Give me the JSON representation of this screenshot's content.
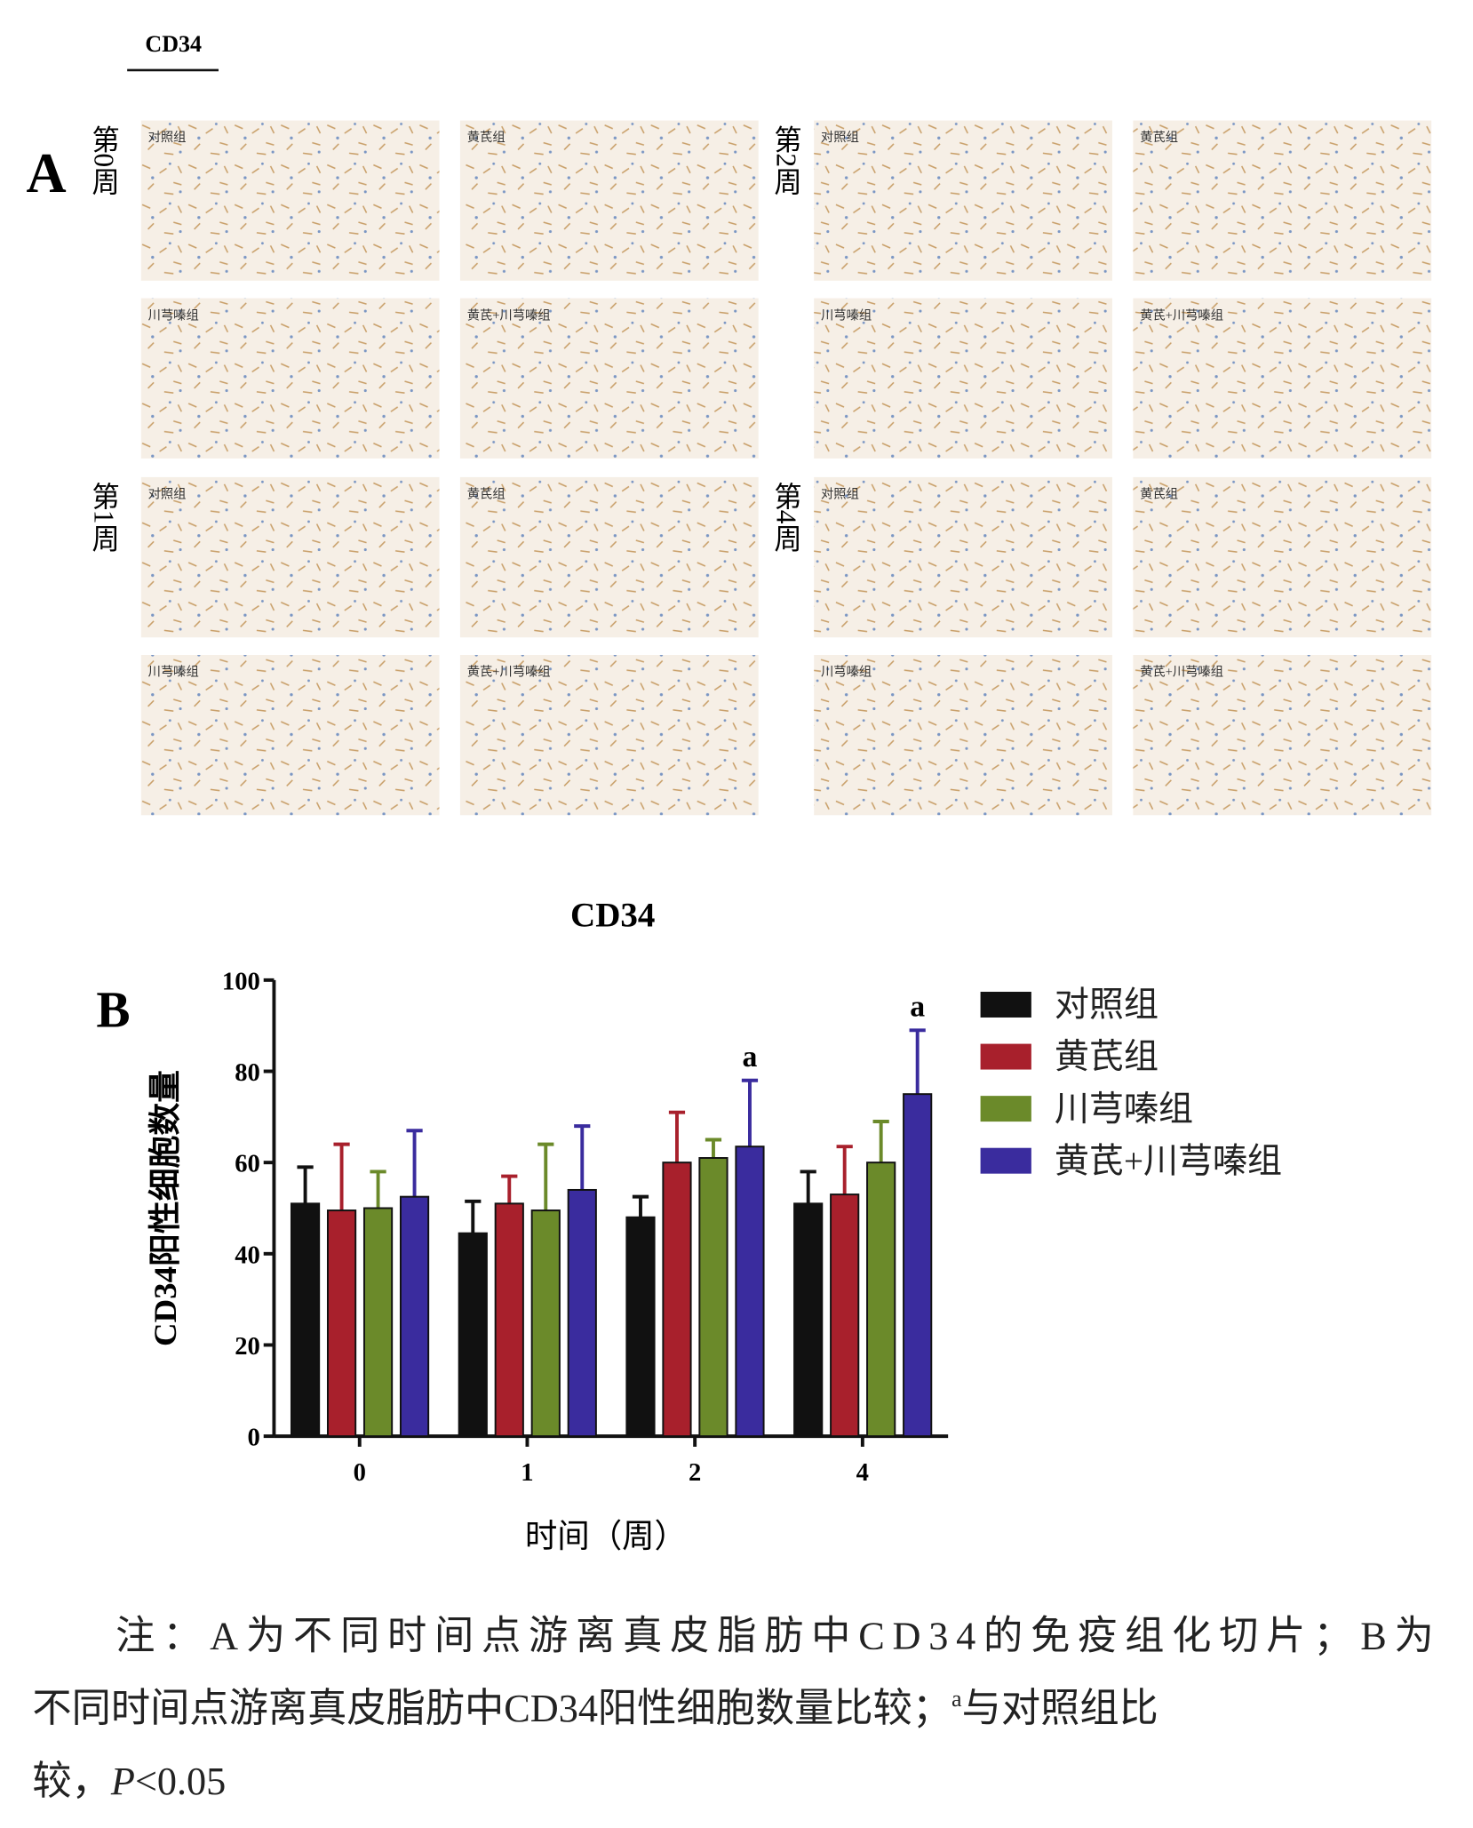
{
  "panel_a": {
    "label": "A",
    "stain": "CD34",
    "weeks": [
      {
        "label": "第0周",
        "groups": [
          "对照组",
          "黄芪组",
          "川芎嗪组",
          "黄芪+川芎嗪组"
        ]
      },
      {
        "label": "第2周",
        "groups": [
          "对照组",
          "黄芪组",
          "川芎嗪组",
          "黄芪+川芎嗪组"
        ]
      },
      {
        "label": "第1周",
        "groups": [
          "对照组",
          "黄芪组",
          "川芎嗪组",
          "黄芪+川芎嗪组"
        ]
      },
      {
        "label": "第4周",
        "groups": [
          "对照组",
          "黄芪组",
          "川芎嗪组",
          "黄芪+川芎嗪组"
        ]
      }
    ]
  },
  "chart_data": {
    "type": "bar",
    "panel_label": "B",
    "title": "CD34",
    "x_label": "时间（周）",
    "y_label": "CD34阳性细胞数量",
    "categories": [
      "0",
      "1",
      "2",
      "4"
    ],
    "ylim": [
      0,
      100
    ],
    "yticks": [
      0,
      20,
      40,
      60,
      80,
      100
    ],
    "series": [
      {
        "name": "对照组",
        "color": "#111111",
        "values": [
          51,
          44.5,
          48,
          51
        ],
        "errors": [
          8,
          7,
          4.5,
          7
        ]
      },
      {
        "name": "黄芪组",
        "color": "#a8202c",
        "values": [
          49.5,
          51,
          60,
          53
        ],
        "errors": [
          14.5,
          6,
          11,
          10.5
        ]
      },
      {
        "name": "川芎嗪组",
        "color": "#6b8a2a",
        "values": [
          50,
          49.5,
          61,
          60
        ],
        "errors": [
          8,
          14.5,
          4,
          9
        ]
      },
      {
        "name": "黄芪+川芎嗪组",
        "color": "#3a2c9e",
        "values": [
          52.5,
          54,
          63.5,
          75
        ],
        "errors": [
          14.5,
          14,
          14.5,
          14
        ],
        "labels": [
          null,
          null,
          "a",
          "a"
        ]
      }
    ]
  },
  "caption": [
    [
      "注：A为不同时间点游离真皮脂肪中CD34的免疫组化切片；B为"
    ],
    [
      "不同时间点游离真皮脂肪中CD34阳性细胞数量比较；",
      "a",
      "与对照组比"
    ],
    [
      "较，",
      "P",
      "<0.05"
    ]
  ]
}
